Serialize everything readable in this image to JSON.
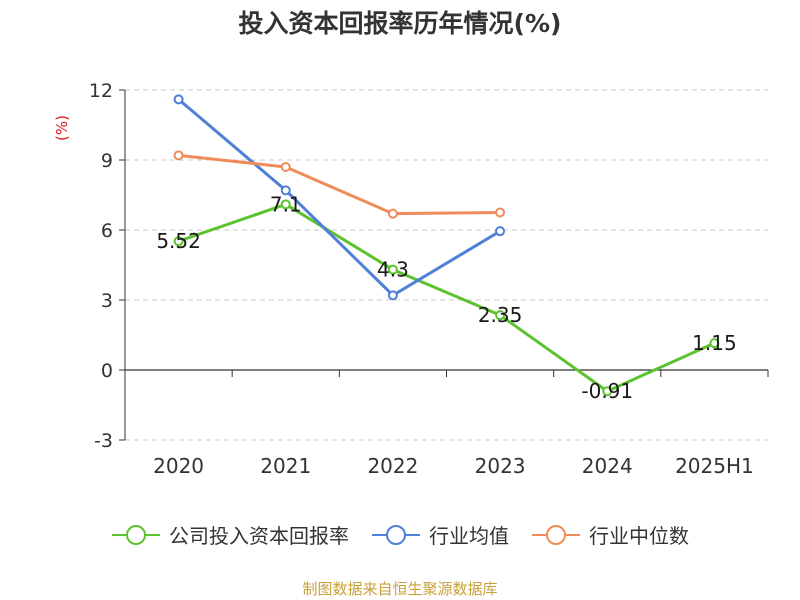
{
  "page": {
    "title": "投入资本回报率历年情况(%)",
    "source": "制图数据来自恒生聚源数据库"
  },
  "chart_data": {
    "type": "line",
    "title": "投入资本回报率历年情况(%)",
    "ylabel": "(%)",
    "xlabel": "",
    "categories": [
      "2020",
      "2021",
      "2022",
      "2023",
      "2024",
      "2025H1"
    ],
    "ylim": [
      -3,
      12
    ],
    "yticks": [
      -3,
      0,
      3,
      6,
      9,
      12
    ],
    "grid": true,
    "legend_position": "bottom",
    "series": [
      {
        "name": "公司投入资本回报率",
        "color": "#5cc32e",
        "values": [
          5.52,
          7.1,
          4.3,
          2.35,
          -0.91,
          1.15
        ],
        "labels": [
          "5.52",
          "7.1",
          "4.3",
          "2.35",
          "-0.91",
          "1.15"
        ]
      },
      {
        "name": "行业均值",
        "color": "#4f7fd6",
        "values": [
          11.6,
          7.7,
          3.2,
          5.95,
          null,
          null
        ]
      },
      {
        "name": "行业中位数",
        "color": "#f08c5a",
        "values": [
          9.2,
          8.7,
          6.7,
          6.75,
          null,
          null
        ]
      }
    ]
  }
}
